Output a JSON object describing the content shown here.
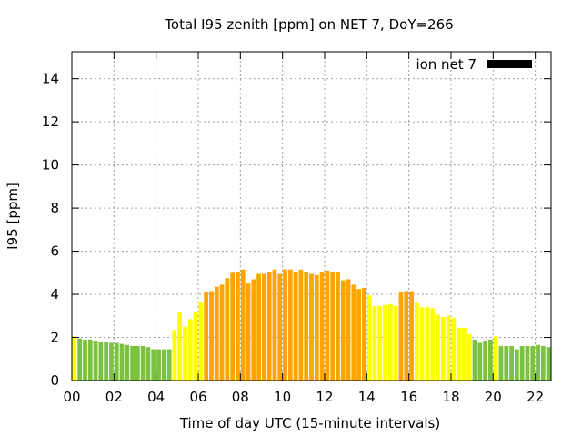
{
  "chart_data": {
    "type": "bar",
    "title": "Total I95 zenith [ppm] on NET 7, DoY=266",
    "xlabel": "Time of day UTC (15-minute intervals)",
    "ylabel": "I95 [ppm]",
    "xlim": [
      0,
      22.75
    ],
    "ylim": [
      0,
      15.25
    ],
    "x_ticks": [
      "00",
      "02",
      "04",
      "06",
      "08",
      "10",
      "12",
      "14",
      "16",
      "18",
      "20",
      "22"
    ],
    "y_ticks": [
      "0",
      "2",
      "4",
      "6",
      "8",
      "10",
      "12",
      "14"
    ],
    "grid": true,
    "legend": {
      "position": "top-right",
      "entries": [
        {
          "name": "ion net 7",
          "color": "#000000"
        }
      ]
    },
    "interval_hours": 0.25,
    "colors": {
      "green": "#7cc241",
      "yellow": "#ffff00",
      "orange": "#ffa500"
    },
    "values": [
      2.05,
      1.95,
      1.9,
      1.9,
      1.85,
      1.8,
      1.8,
      1.75,
      1.75,
      1.7,
      1.65,
      1.6,
      1.6,
      1.6,
      1.55,
      1.45,
      1.45,
      1.45,
      1.45,
      2.35,
      3.2,
      2.5,
      2.85,
      3.2,
      3.65,
      4.1,
      4.15,
      4.35,
      4.45,
      4.75,
      5.0,
      5.05,
      5.15,
      4.5,
      4.7,
      4.95,
      4.95,
      5.05,
      5.15,
      4.95,
      5.15,
      5.15,
      5.05,
      5.15,
      5.05,
      4.95,
      4.9,
      5.05,
      5.1,
      5.05,
      5.05,
      4.65,
      4.7,
      4.45,
      4.25,
      4.3,
      3.95,
      3.45,
      3.45,
      3.5,
      3.55,
      3.45,
      4.1,
      4.15,
      4.15,
      3.6,
      3.4,
      3.4,
      3.35,
      3.05,
      2.95,
      3.0,
      2.9,
      2.45,
      2.45,
      2.15,
      1.9,
      1.75,
      1.85,
      1.9,
      2.05,
      1.6,
      1.6,
      1.6,
      1.45,
      1.6,
      1.6,
      1.6,
      1.65,
      1.6,
      1.55
    ],
    "levels": [
      "yellow",
      "green",
      "green",
      "green",
      "green",
      "green",
      "green",
      "green",
      "green",
      "green",
      "green",
      "green",
      "green",
      "green",
      "green",
      "green",
      "green",
      "green",
      "green",
      "yellow",
      "yellow",
      "yellow",
      "yellow",
      "yellow",
      "yellow",
      "orange",
      "orange",
      "orange",
      "orange",
      "orange",
      "orange",
      "orange",
      "orange",
      "orange",
      "orange",
      "orange",
      "orange",
      "orange",
      "orange",
      "orange",
      "orange",
      "orange",
      "orange",
      "orange",
      "orange",
      "orange",
      "orange",
      "orange",
      "orange",
      "orange",
      "orange",
      "orange",
      "orange",
      "orange",
      "orange",
      "orange",
      "yellow",
      "yellow",
      "yellow",
      "yellow",
      "yellow",
      "yellow",
      "orange",
      "orange",
      "orange",
      "yellow",
      "yellow",
      "yellow",
      "yellow",
      "yellow",
      "yellow",
      "yellow",
      "yellow",
      "yellow",
      "yellow",
      "yellow",
      "green",
      "green",
      "green",
      "green",
      "yellow",
      "green",
      "green",
      "green",
      "green",
      "green",
      "green",
      "green",
      "green",
      "green",
      "green"
    ]
  }
}
